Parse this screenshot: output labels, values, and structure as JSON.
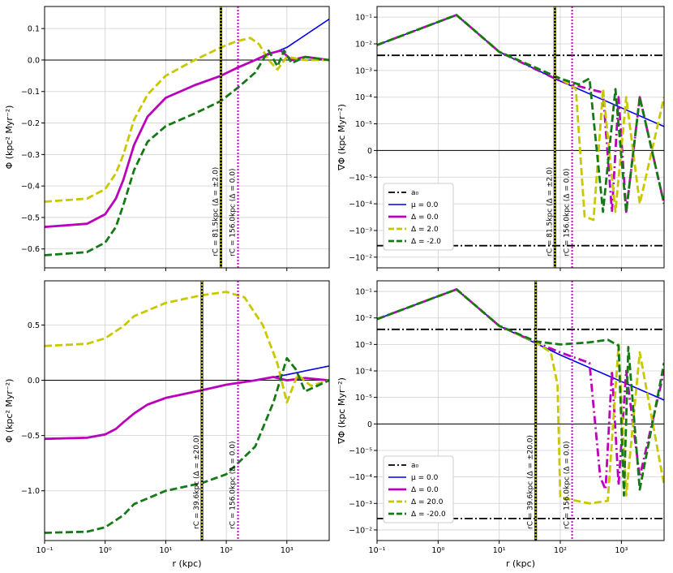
{
  "chart_data": [
    {
      "type": "line",
      "panel": "top-left",
      "xlabel": "",
      "ylabel": "Φ (kpc² Myr⁻²)",
      "xscale": "log",
      "yscale": "linear",
      "xlim": [
        0.1,
        5000
      ],
      "ylim": [
        -0.66,
        0.17
      ],
      "yticks": [
        0.1,
        0.0,
        -0.1,
        -0.2,
        -0.3,
        -0.4,
        -0.5,
        -0.6
      ],
      "ytick_labels": [
        "0.1",
        "0.0",
        "−0.1",
        "−0.2",
        "−0.3",
        "−0.4",
        "−0.5",
        "−0.6"
      ],
      "xtick_labels": [],
      "zero_line": 0,
      "vlines": [
        {
          "x": 81.5,
          "label": "r_C = 81.5kpc (Δ = ±2.0)",
          "color": "#2a8a00"
        },
        {
          "x": 156.0,
          "label": "r_C = 156.0kpc (Δ = 0.0)",
          "color": "#cc00cc"
        }
      ],
      "series": [
        {
          "name": "μ = 0.0",
          "color": "#0000ee",
          "style": "solid",
          "x": [
            0.1,
            0.5,
            1,
            1.5,
            2,
            3,
            5,
            10,
            30,
            81.5,
            150,
            300,
            1000,
            5000
          ],
          "values": [
            -0.53,
            -0.52,
            -0.49,
            -0.44,
            -0.38,
            -0.27,
            -0.18,
            -0.12,
            -0.08,
            -0.05,
            -0.025,
            0.0,
            0.04,
            0.13
          ]
        },
        {
          "name": "Δ = 0.0",
          "color": "#bb00bb",
          "style": "solid",
          "x": [
            0.1,
            0.5,
            1,
            1.5,
            2,
            3,
            5,
            10,
            30,
            81.5,
            150,
            300,
            500,
            800,
            1200,
            2000,
            5000
          ],
          "values": [
            -0.53,
            -0.52,
            -0.49,
            -0.44,
            -0.38,
            -0.27,
            -0.18,
            -0.12,
            -0.08,
            -0.05,
            -0.025,
            0.0,
            0.02,
            0.03,
            0.0,
            0.01,
            0.0
          ]
        },
        {
          "name": "Δ = 2.0",
          "color": "#c8c800",
          "style": "dashed",
          "x": [
            0.1,
            0.5,
            1,
            1.5,
            2,
            3,
            5,
            10,
            30,
            81.5,
            150,
            250,
            350,
            500,
            700,
            1000,
            2000,
            5000
          ],
          "values": [
            -0.45,
            -0.44,
            -0.41,
            -0.36,
            -0.3,
            -0.19,
            -0.11,
            -0.05,
            0.0,
            0.04,
            0.06,
            0.07,
            0.05,
            0.0,
            -0.03,
            0.01,
            0.0,
            0.0
          ]
        },
        {
          "name": "Δ = -2.0",
          "color": "#157a15",
          "style": "dashed",
          "x": [
            0.1,
            0.5,
            1,
            1.5,
            2,
            3,
            5,
            10,
            30,
            81.5,
            150,
            300,
            500,
            700,
            900,
            1200,
            2000,
            5000
          ],
          "values": [
            -0.62,
            -0.61,
            -0.58,
            -0.53,
            -0.46,
            -0.35,
            -0.26,
            -0.21,
            -0.17,
            -0.13,
            -0.09,
            -0.04,
            0.03,
            -0.02,
            0.03,
            -0.01,
            0.01,
            0.0
          ]
        }
      ]
    },
    {
      "type": "line",
      "panel": "top-right",
      "xlabel": "",
      "ylabel": "∇Φ (kpc Myr⁻²)",
      "xscale": "log",
      "yscale": "symlog",
      "xlim": [
        0.1,
        5000
      ],
      "yticks": [
        0.1,
        0.01,
        0.001,
        0.0001,
        1e-05,
        0,
        -1e-05,
        -0.0001,
        -0.001,
        -0.01
      ],
      "ytick_labels": [
        "10⁻¹",
        "10⁻²",
        "10⁻³",
        "10⁻⁴",
        "10⁻⁵",
        "0",
        "−10⁻⁵",
        "−10⁻⁴",
        "−10⁻³",
        "−10⁻²"
      ],
      "xtick_labels": [],
      "a0": 0.0037,
      "vlines": [
        {
          "x": 81.5,
          "label": "r_C = 81.5kpc (Δ = ±2.0)",
          "color": "#2a8a00"
        },
        {
          "x": 156.0,
          "label": "r_C = 156.0kpc (Δ = 0.0)",
          "color": "#cc00cc"
        }
      ],
      "legend": [
        "a₀",
        "μ = 0.0",
        "Δ =  0.0",
        "Δ =  2.0",
        "Δ =  -2.0"
      ],
      "legend_position": "lower-left",
      "series": [
        {
          "name": "μ = 0.0",
          "color": "#0000ee",
          "style": "solid",
          "x": [
            0.1,
            2,
            10,
            100,
            1000,
            5000
          ],
          "values": [
            0.009,
            0.12,
            0.005,
            0.0004,
            4e-05,
            9e-06
          ]
        },
        {
          "name": "Δ = 0.0",
          "color": "#bb00bb",
          "style": "dashdot",
          "x": [
            0.1,
            2,
            10,
            100,
            300,
            500,
            700,
            900,
            1200,
            2000,
            5000
          ],
          "values": [
            0.009,
            0.12,
            0.005,
            0.0004,
            0.0002,
            0.00015,
            -0.0002,
            0.0001,
            -0.0002,
            0.0001,
            -0.0001
          ]
        },
        {
          "name": "Δ = 2.0",
          "color": "#c8c800",
          "style": "dashed",
          "x": [
            0.1,
            2,
            10,
            100,
            180,
            250,
            350,
            500,
            800,
            1200,
            2000,
            5000
          ],
          "values": [
            0.009,
            0.12,
            0.005,
            0.0005,
            0.0002,
            -0.0003,
            -0.0004,
            0.0002,
            -0.0002,
            0.0001,
            -0.0001,
            0.0001
          ]
        },
        {
          "name": "Δ = -2.0",
          "color": "#157a15",
          "style": "dashed",
          "x": [
            0.1,
            2,
            10,
            100,
            200,
            300,
            500,
            800,
            1200,
            2000,
            5000
          ],
          "values": [
            0.009,
            0.12,
            0.005,
            0.0005,
            0.0003,
            0.0005,
            -0.0002,
            0.0002,
            -0.0002,
            0.0001,
            -0.0001
          ]
        }
      ]
    },
    {
      "type": "line",
      "panel": "bottom-left",
      "xlabel": "r (kpc)",
      "ylabel": "Φ (kpc² Myr⁻²)",
      "xscale": "log",
      "yscale": "linear",
      "xlim": [
        0.1,
        5000
      ],
      "ylim": [
        -1.45,
        0.9
      ],
      "yticks": [
        0.5,
        0.0,
        -0.5,
        -1.0
      ],
      "ytick_labels": [
        "0.5",
        "0.0",
        "−0.5",
        "−1.0"
      ],
      "xticks": [
        0.1,
        1,
        10,
        100,
        1000
      ],
      "xtick_labels": [
        "10⁻¹",
        "10⁰",
        "10¹",
        "10²",
        "10³"
      ],
      "zero_line": 0,
      "vlines": [
        {
          "x": 39.6,
          "label": "r_C = 39.6kpc (Δ = ±20.0)",
          "color": "#2a8a00"
        },
        {
          "x": 156.0,
          "label": "r_C = 156.0kpc (Δ = 0.0)",
          "color": "#cc00cc"
        }
      ],
      "series": [
        {
          "name": "μ = 0.0",
          "color": "#0000ee",
          "style": "solid",
          "x": [
            0.1,
            0.5,
            1,
            1.5,
            2,
            3,
            5,
            10,
            39.6,
            100,
            300,
            1000,
            5000
          ],
          "values": [
            -0.53,
            -0.52,
            -0.49,
            -0.44,
            -0.38,
            -0.3,
            -0.22,
            -0.16,
            -0.09,
            -0.04,
            0.0,
            0.05,
            0.13
          ]
        },
        {
          "name": "Δ = 0.0",
          "color": "#bb00bb",
          "style": "solid",
          "x": [
            0.1,
            0.5,
            1,
            1.5,
            2,
            3,
            5,
            10,
            39.6,
            100,
            300,
            600,
            1000,
            2000,
            5000
          ],
          "values": [
            -0.53,
            -0.52,
            -0.49,
            -0.44,
            -0.38,
            -0.3,
            -0.22,
            -0.16,
            -0.09,
            -0.04,
            0.0,
            0.03,
            0.0,
            0.02,
            0.0
          ]
        },
        {
          "name": "Δ = 20.0",
          "color": "#c8c800",
          "style": "dashed",
          "x": [
            0.1,
            0.5,
            1,
            2,
            3,
            10,
            39.6,
            100,
            200,
            400,
            700,
            1000,
            1500,
            2500,
            5000
          ],
          "values": [
            0.31,
            0.33,
            0.38,
            0.49,
            0.58,
            0.7,
            0.77,
            0.8,
            0.75,
            0.5,
            0.15,
            -0.2,
            0.05,
            -0.05,
            0.0
          ]
        },
        {
          "name": "Δ = -20.0",
          "color": "#157a15",
          "style": "dashed",
          "x": [
            0.1,
            0.5,
            1,
            2,
            3,
            10,
            39.6,
            100,
            300,
            600,
            1000,
            1400,
            2000,
            5000
          ],
          "values": [
            -1.38,
            -1.37,
            -1.33,
            -1.22,
            -1.12,
            -1.0,
            -0.93,
            -0.85,
            -0.6,
            -0.2,
            0.2,
            0.1,
            -0.1,
            0.0
          ]
        }
      ]
    },
    {
      "type": "line",
      "panel": "bottom-right",
      "xlabel": "r (kpc)",
      "ylabel": "∇Φ (kpc Myr⁻²)",
      "xscale": "log",
      "yscale": "symlog",
      "xlim": [
        0.1,
        5000
      ],
      "yticks": [
        0.1,
        0.01,
        0.001,
        0.0001,
        1e-05,
        0,
        -1e-05,
        -0.0001,
        -0.001,
        -0.01
      ],
      "ytick_labels": [
        "10⁻¹",
        "10⁻²",
        "10⁻³",
        "10⁻⁴",
        "10⁻⁵",
        "0",
        "−10⁻⁵",
        "−10⁻⁴",
        "−10⁻³",
        "−10⁻²"
      ],
      "xticks": [
        0.1,
        1,
        10,
        100,
        1000
      ],
      "xtick_labels": [
        "10⁻¹",
        "10⁰",
        "10¹",
        "10²",
        "10³"
      ],
      "a0": 0.0037,
      "vlines": [
        {
          "x": 39.6,
          "label": "r_C = 39.6kpc (Δ = ±20.0)",
          "color": "#2a8a00"
        },
        {
          "x": 156.0,
          "label": "r_C = 156.0kpc (Δ = 0.0)",
          "color": "#cc00cc"
        }
      ],
      "legend": [
        "a₀",
        "μ = 0.0",
        "Δ =  0.0",
        "Δ =  20.0",
        "Δ =  -20.0"
      ],
      "legend_position": "lower-left",
      "series": [
        {
          "name": "μ = 0.0",
          "color": "#0000ee",
          "style": "solid",
          "x": [
            0.1,
            2,
            10,
            100,
            1000,
            5000
          ],
          "values": [
            0.009,
            0.12,
            0.005,
            0.0004,
            4e-05,
            9e-06
          ]
        },
        {
          "name": "Δ = 0.0",
          "color": "#bb00bb",
          "style": "dashdot",
          "x": [
            0.1,
            2,
            10,
            39.6,
            100,
            300,
            450,
            550,
            700,
            900,
            1200,
            2000,
            5000
          ],
          "values": [
            0.009,
            0.12,
            0.005,
            0.0012,
            0.0005,
            0.0002,
            -0.0001,
            -0.0003,
            0.0001,
            -0.0002,
            0.0001,
            -0.0001,
            0.0001
          ]
        },
        {
          "name": "Δ = 20.0",
          "color": "#c8c800",
          "style": "dashed",
          "x": [
            0.1,
            2,
            10,
            39.6,
            70,
            90,
            100,
            300,
            600,
            900,
            1200,
            2000,
            5000
          ],
          "values": [
            0.009,
            0.12,
            0.005,
            0.0012,
            0.0005,
            3e-05,
            -0.0006,
            -0.001,
            -0.0008,
            0.001,
            -0.0005,
            0.0005,
            -0.0002
          ]
        },
        {
          "name": "Δ = -20.0",
          "color": "#157a15",
          "style": "dashed",
          "x": [
            0.1,
            2,
            10,
            39.6,
            100,
            300,
            600,
            900,
            1100,
            1300,
            2000,
            5000
          ],
          "values": [
            0.009,
            0.12,
            0.005,
            0.0013,
            0.001,
            0.0012,
            0.0015,
            0.0009,
            -0.0005,
            0.0008,
            -0.0003,
            0.0002
          ]
        }
      ]
    }
  ]
}
